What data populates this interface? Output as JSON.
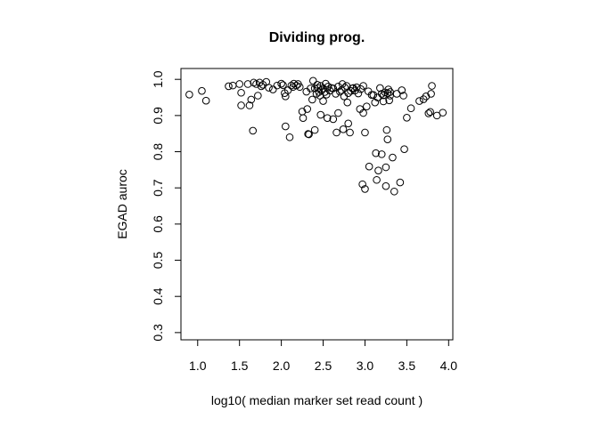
{
  "chart_data": {
    "type": "scatter",
    "title": "Dividing prog.",
    "xlabel": "log10( median marker set read count )",
    "ylabel": "EGAD auroc",
    "xlim": [
      0.8,
      4.05
    ],
    "ylim": [
      0.28,
      1.03
    ],
    "x_ticks": [
      1.0,
      1.5,
      2.0,
      2.5,
      3.0,
      3.5,
      4.0
    ],
    "x_tick_labels": [
      "1.0",
      "1.5",
      "2.0",
      "2.5",
      "3.0",
      "3.5",
      "4.0"
    ],
    "y_ticks": [
      0.3,
      0.4,
      0.5,
      0.6,
      0.7,
      0.8,
      0.9,
      1.0
    ],
    "y_tick_labels": [
      "0.3",
      "0.4",
      "0.5",
      "0.6",
      "0.7",
      "0.8",
      "0.9",
      "1.0"
    ],
    "grid": false,
    "marker": "open-circle",
    "points": [
      [
        0.9,
        0.958
      ],
      [
        1.05,
        0.968
      ],
      [
        1.1,
        0.941
      ],
      [
        1.37,
        0.981
      ],
      [
        1.42,
        0.983
      ],
      [
        1.5,
        0.987
      ],
      [
        1.52,
        0.963
      ],
      [
        1.52,
        0.928
      ],
      [
        1.6,
        0.987
      ],
      [
        1.62,
        0.928
      ],
      [
        1.64,
        0.944
      ],
      [
        1.66,
        0.858
      ],
      [
        1.67,
        0.991
      ],
      [
        1.7,
        0.987
      ],
      [
        1.72,
        0.955
      ],
      [
        1.74,
        0.991
      ],
      [
        1.76,
        0.981
      ],
      [
        1.78,
        0.985
      ],
      [
        1.82,
        0.993
      ],
      [
        1.85,
        0.977
      ],
      [
        1.9,
        0.972
      ],
      [
        1.95,
        0.983
      ],
      [
        2.0,
        0.988
      ],
      [
        2.02,
        0.984
      ],
      [
        2.04,
        0.962
      ],
      [
        2.05,
        0.953
      ],
      [
        2.05,
        0.87
      ],
      [
        2.08,
        0.97
      ],
      [
        2.1,
        0.84
      ],
      [
        2.12,
        0.983
      ],
      [
        2.14,
        0.979
      ],
      [
        2.15,
        0.988
      ],
      [
        2.18,
        0.983
      ],
      [
        2.2,
        0.987
      ],
      [
        2.22,
        0.979
      ],
      [
        2.25,
        0.911
      ],
      [
        2.26,
        0.893
      ],
      [
        2.3,
        0.966
      ],
      [
        2.31,
        0.918
      ],
      [
        2.32,
        0.849
      ],
      [
        2.33,
        0.848
      ],
      [
        2.35,
        0.975
      ],
      [
        2.37,
        0.944
      ],
      [
        2.38,
        0.996
      ],
      [
        2.4,
        0.86
      ],
      [
        2.4,
        0.975
      ],
      [
        2.42,
        0.96
      ],
      [
        2.43,
        0.985
      ],
      [
        2.44,
        0.976
      ],
      [
        2.45,
        0.965
      ],
      [
        2.46,
        0.955
      ],
      [
        2.47,
        0.982
      ],
      [
        2.47,
        0.902
      ],
      [
        2.48,
        0.97
      ],
      [
        2.5,
        0.94
      ],
      [
        2.5,
        0.975
      ],
      [
        2.52,
        0.965
      ],
      [
        2.53,
        0.988
      ],
      [
        2.54,
        0.958
      ],
      [
        2.55,
        0.893
      ],
      [
        2.56,
        0.98
      ],
      [
        2.58,
        0.969
      ],
      [
        2.6,
        0.976
      ],
      [
        2.62,
        0.975
      ],
      [
        2.62,
        0.89
      ],
      [
        2.65,
        0.96
      ],
      [
        2.66,
        0.853
      ],
      [
        2.68,
        0.98
      ],
      [
        2.68,
        0.907
      ],
      [
        2.7,
        0.966
      ],
      [
        2.72,
        0.97
      ],
      [
        2.73,
        0.987
      ],
      [
        2.74,
        0.862
      ],
      [
        2.75,
        0.953
      ],
      [
        2.76,
        0.977
      ],
      [
        2.78,
        0.982
      ],
      [
        2.79,
        0.936
      ],
      [
        2.8,
        0.962
      ],
      [
        2.8,
        0.878
      ],
      [
        2.82,
        0.853
      ],
      [
        2.83,
        0.968
      ],
      [
        2.85,
        0.975
      ],
      [
        2.86,
        0.976
      ],
      [
        2.88,
        0.969
      ],
      [
        2.9,
        0.978
      ],
      [
        2.92,
        0.961
      ],
      [
        2.94,
        0.918
      ],
      [
        2.95,
        0.973
      ],
      [
        2.97,
        0.71
      ],
      [
        2.98,
        0.907
      ],
      [
        2.98,
        0.982
      ],
      [
        3.0,
        0.697
      ],
      [
        3.0,
        0.853
      ],
      [
        3.02,
        0.925
      ],
      [
        3.04,
        0.967
      ],
      [
        3.05,
        0.759
      ],
      [
        3.08,
        0.957
      ],
      [
        3.1,
        0.957
      ],
      [
        3.12,
        0.936
      ],
      [
        3.13,
        0.796
      ],
      [
        3.14,
        0.722
      ],
      [
        3.15,
        0.95
      ],
      [
        3.16,
        0.748
      ],
      [
        3.18,
        0.976
      ],
      [
        3.2,
        0.96
      ],
      [
        3.2,
        0.793
      ],
      [
        3.22,
        0.956
      ],
      [
        3.22,
        0.939
      ],
      [
        3.24,
        0.964
      ],
      [
        3.25,
        0.705
      ],
      [
        3.25,
        0.757
      ],
      [
        3.26,
        0.86
      ],
      [
        3.27,
        0.962
      ],
      [
        3.27,
        0.834
      ],
      [
        3.28,
        0.972
      ],
      [
        3.29,
        0.942
      ],
      [
        3.3,
        0.955
      ],
      [
        3.3,
        0.965
      ],
      [
        3.33,
        0.784
      ],
      [
        3.35,
        0.69
      ],
      [
        3.38,
        0.96
      ],
      [
        3.42,
        0.715
      ],
      [
        3.44,
        0.97
      ],
      [
        3.46,
        0.955
      ],
      [
        3.47,
        0.807
      ],
      [
        3.5,
        0.894
      ],
      [
        3.55,
        0.92
      ],
      [
        3.65,
        0.94
      ],
      [
        3.7,
        0.945
      ],
      [
        3.73,
        0.953
      ],
      [
        3.76,
        0.906
      ],
      [
        3.78,
        0.91
      ],
      [
        3.79,
        0.96
      ],
      [
        3.8,
        0.982
      ],
      [
        3.86,
        0.9
      ],
      [
        3.93,
        0.908
      ]
    ]
  }
}
